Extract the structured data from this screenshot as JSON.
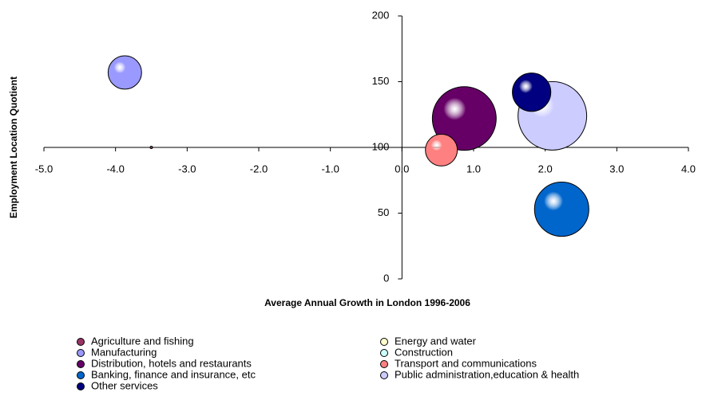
{
  "chart_data": {
    "type": "bubble",
    "x_label": "Average Annual Growth in London 1996-2006",
    "y_label": "Employment Location Quotient",
    "xlim": [
      -5,
      4
    ],
    "xticks": [
      {
        "value": -5,
        "label": "-5.0"
      },
      {
        "value": -4,
        "label": "-4.0"
      },
      {
        "value": -3,
        "label": "-3.0"
      },
      {
        "value": -2,
        "label": "-2.0"
      },
      {
        "value": -1,
        "label": "-1.0"
      },
      {
        "value": 0,
        "label": "0.0"
      },
      {
        "value": 1,
        "label": "1.0"
      },
      {
        "value": 2,
        "label": "2.0"
      },
      {
        "value": 3,
        "label": "3.0"
      },
      {
        "value": 4,
        "label": "4.0"
      }
    ],
    "ylim": [
      0,
      200
    ],
    "yticks": [
      0,
      50,
      100,
      150,
      200
    ],
    "series": [
      {
        "name": "Agriculture and fishing",
        "color": "#993366",
        "x": [
          -3.5
        ],
        "values": [
          100
        ],
        "size": [
          0.2
        ]
      },
      {
        "name": "Energy and water",
        "color": "#FFFFCC",
        "x": [
          null
        ],
        "values": [
          null
        ],
        "size": [
          null
        ]
      },
      {
        "name": "Manufacturing",
        "color": "#9999FF",
        "x": [
          -3.87
        ],
        "values": [
          157
        ],
        "size": [
          44
        ]
      },
      {
        "name": "Construction",
        "color": "#CCFFFF",
        "x": [
          null
        ],
        "values": [
          null
        ],
        "size": [
          null
        ]
      },
      {
        "name": "Distribution, hotels and restaurants",
        "color": "#660066",
        "x": [
          0.87
        ],
        "values": [
          122
        ],
        "size": [
          160
        ]
      },
      {
        "name": "Transport and communications",
        "color": "#FF8080",
        "x": [
          0.55
        ],
        "values": [
          98
        ],
        "size": [
          40
        ]
      },
      {
        "name": "Banking, finance and insurance, etc",
        "color": "#0066CC",
        "x": [
          2.23
        ],
        "values": [
          53
        ],
        "size": [
          116
        ]
      },
      {
        "name": "Public administration,education & health",
        "color": "#CCCCFF",
        "x": [
          2.1
        ],
        "values": [
          124
        ],
        "size": [
          185
        ]
      },
      {
        "name": "Other services",
        "color": "#000080",
        "x": [
          1.81
        ],
        "values": [
          142
        ],
        "size": [
          58
        ]
      }
    ]
  }
}
